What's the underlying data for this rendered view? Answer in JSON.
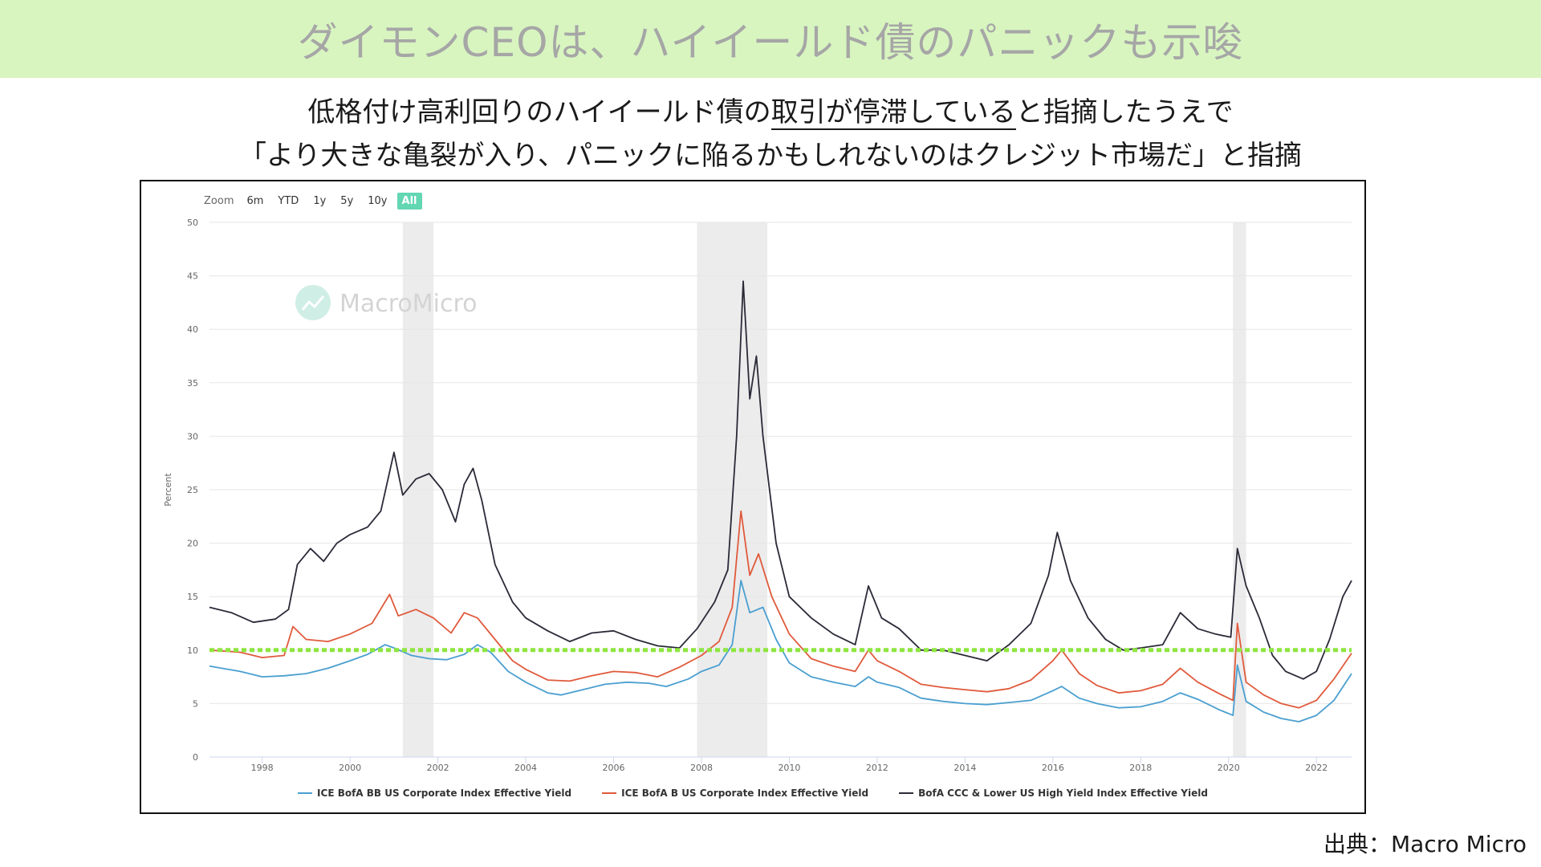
{
  "header": {
    "title": "ダイモンCEOは、ハイイールド債のパニックも示唆"
  },
  "subtitle": {
    "line1_before": "低格付け高利回りのハイイールド債の",
    "line1_underlined": "取引が停滞している",
    "line1_after": "と指摘したうえで",
    "line2": "「より大きな亀裂が入り、パニックに陥るかもしれないのはクレジット市場だ」と指摘"
  },
  "source": "出典：Macro Micro",
  "watermark": "MacroMicro",
  "zoom": {
    "label": "Zoom",
    "options": [
      "6m",
      "YTD",
      "1y",
      "5y",
      "10y",
      "All"
    ],
    "active": "All"
  },
  "colors": {
    "bb": "#4a9fd0",
    "b": "#e05a3c",
    "ccc": "#2a2a38",
    "threshold": "#8ee63f",
    "recession": "#ececec",
    "zoom_active": "#63d6b2"
  },
  "chart_data": {
    "type": "line",
    "title": "",
    "xlabel": "",
    "ylabel": "Percent",
    "xlim": [
      1996.8,
      2022.8
    ],
    "ylim": [
      0,
      50
    ],
    "yticks": [
      0,
      5,
      10,
      15,
      20,
      25,
      30,
      35,
      40,
      45,
      50
    ],
    "xticks": [
      1998,
      2000,
      2002,
      2004,
      2006,
      2008,
      2010,
      2012,
      2014,
      2016,
      2018,
      2020,
      2022
    ],
    "grid": true,
    "legend_position": "bottom",
    "recession_bands": [
      [
        2001.2,
        2001.9
      ],
      [
        2007.9,
        2009.5
      ],
      [
        2020.1,
        2020.4
      ]
    ],
    "reference_line": {
      "y": 10,
      "style": "dotted"
    },
    "series": [
      {
        "name": "ICE BofA BB US Corporate Index Effective Yield",
        "color": "#4a9fd0",
        "points": [
          [
            1996.8,
            8.5
          ],
          [
            1997.5,
            8.0
          ],
          [
            1998.0,
            7.5
          ],
          [
            1998.5,
            7.6
          ],
          [
            1999.0,
            7.8
          ],
          [
            1999.5,
            8.3
          ],
          [
            2000.0,
            9.0
          ],
          [
            2000.4,
            9.6
          ],
          [
            2000.8,
            10.5
          ],
          [
            2001.0,
            10.2
          ],
          [
            2001.4,
            9.5
          ],
          [
            2001.8,
            9.2
          ],
          [
            2002.2,
            9.1
          ],
          [
            2002.6,
            9.6
          ],
          [
            2002.9,
            10.5
          ],
          [
            2003.2,
            9.8
          ],
          [
            2003.6,
            8.0
          ],
          [
            2004.0,
            7.0
          ],
          [
            2004.5,
            6.0
          ],
          [
            2004.8,
            5.8
          ],
          [
            2005.3,
            6.3
          ],
          [
            2005.8,
            6.8
          ],
          [
            2006.3,
            7.0
          ],
          [
            2006.8,
            6.9
          ],
          [
            2007.2,
            6.6
          ],
          [
            2007.7,
            7.3
          ],
          [
            2008.0,
            8.0
          ],
          [
            2008.4,
            8.6
          ],
          [
            2008.7,
            10.5
          ],
          [
            2008.9,
            16.5
          ],
          [
            2009.1,
            13.5
          ],
          [
            2009.4,
            14.0
          ],
          [
            2009.7,
            11.0
          ],
          [
            2010.0,
            8.8
          ],
          [
            2010.5,
            7.5
          ],
          [
            2011.0,
            7.0
          ],
          [
            2011.5,
            6.6
          ],
          [
            2011.8,
            7.5
          ],
          [
            2012.0,
            7.0
          ],
          [
            2012.5,
            6.5
          ],
          [
            2013.0,
            5.5
          ],
          [
            2013.5,
            5.2
          ],
          [
            2014.0,
            5.0
          ],
          [
            2014.5,
            4.9
          ],
          [
            2015.0,
            5.1
          ],
          [
            2015.5,
            5.3
          ],
          [
            2016.0,
            6.2
          ],
          [
            2016.2,
            6.6
          ],
          [
            2016.6,
            5.5
          ],
          [
            2017.0,
            5.0
          ],
          [
            2017.5,
            4.6
          ],
          [
            2018.0,
            4.7
          ],
          [
            2018.5,
            5.2
          ],
          [
            2018.9,
            6.0
          ],
          [
            2019.3,
            5.4
          ],
          [
            2019.8,
            4.4
          ],
          [
            2020.1,
            3.9
          ],
          [
            2020.2,
            8.6
          ],
          [
            2020.4,
            5.2
          ],
          [
            2020.8,
            4.2
          ],
          [
            2021.2,
            3.6
          ],
          [
            2021.6,
            3.3
          ],
          [
            2022.0,
            3.9
          ],
          [
            2022.4,
            5.3
          ],
          [
            2022.8,
            7.8
          ]
        ]
      },
      {
        "name": "ICE BofA B US Corporate Index Effective Yield",
        "color": "#e05a3c",
        "points": [
          [
            1996.8,
            10.0
          ],
          [
            1997.5,
            9.8
          ],
          [
            1998.0,
            9.3
          ],
          [
            1998.5,
            9.5
          ],
          [
            1998.7,
            12.2
          ],
          [
            1999.0,
            11.0
          ],
          [
            1999.5,
            10.8
          ],
          [
            2000.0,
            11.5
          ],
          [
            2000.5,
            12.5
          ],
          [
            2000.9,
            15.2
          ],
          [
            2001.1,
            13.2
          ],
          [
            2001.5,
            13.8
          ],
          [
            2001.9,
            13.0
          ],
          [
            2002.3,
            11.6
          ],
          [
            2002.6,
            13.5
          ],
          [
            2002.9,
            13.0
          ],
          [
            2003.3,
            11.0
          ],
          [
            2003.7,
            9.0
          ],
          [
            2004.0,
            8.2
          ],
          [
            2004.5,
            7.2
          ],
          [
            2005.0,
            7.1
          ],
          [
            2005.5,
            7.6
          ],
          [
            2006.0,
            8.0
          ],
          [
            2006.5,
            7.9
          ],
          [
            2007.0,
            7.5
          ],
          [
            2007.5,
            8.4
          ],
          [
            2008.0,
            9.5
          ],
          [
            2008.4,
            10.8
          ],
          [
            2008.7,
            14.0
          ],
          [
            2008.9,
            23.0
          ],
          [
            2009.1,
            17.0
          ],
          [
            2009.3,
            19.0
          ],
          [
            2009.6,
            15.0
          ],
          [
            2010.0,
            11.5
          ],
          [
            2010.5,
            9.2
          ],
          [
            2011.0,
            8.5
          ],
          [
            2011.5,
            8.0
          ],
          [
            2011.8,
            10.0
          ],
          [
            2012.0,
            9.0
          ],
          [
            2012.5,
            8.0
          ],
          [
            2013.0,
            6.8
          ],
          [
            2013.5,
            6.5
          ],
          [
            2014.0,
            6.3
          ],
          [
            2014.5,
            6.1
          ],
          [
            2015.0,
            6.4
          ],
          [
            2015.5,
            7.2
          ],
          [
            2016.0,
            9.0
          ],
          [
            2016.2,
            10.0
          ],
          [
            2016.6,
            7.8
          ],
          [
            2017.0,
            6.7
          ],
          [
            2017.5,
            6.0
          ],
          [
            2018.0,
            6.2
          ],
          [
            2018.5,
            6.8
          ],
          [
            2018.9,
            8.3
          ],
          [
            2019.3,
            7.0
          ],
          [
            2019.8,
            5.9
          ],
          [
            2020.1,
            5.3
          ],
          [
            2020.2,
            12.5
          ],
          [
            2020.4,
            7.0
          ],
          [
            2020.8,
            5.8
          ],
          [
            2021.2,
            5.0
          ],
          [
            2021.6,
            4.6
          ],
          [
            2022.0,
            5.3
          ],
          [
            2022.4,
            7.3
          ],
          [
            2022.8,
            9.7
          ]
        ]
      },
      {
        "name": "BofA CCC & Lower US High Yield Index Effective Yield",
        "color": "#2a2a38",
        "points": [
          [
            1996.8,
            14.0
          ],
          [
            1997.3,
            13.5
          ],
          [
            1997.8,
            12.6
          ],
          [
            1998.3,
            12.9
          ],
          [
            1998.6,
            13.8
          ],
          [
            1998.8,
            18.0
          ],
          [
            1999.1,
            19.5
          ],
          [
            1999.4,
            18.3
          ],
          [
            1999.7,
            20.0
          ],
          [
            2000.0,
            20.8
          ],
          [
            2000.4,
            21.5
          ],
          [
            2000.7,
            23.0
          ],
          [
            2001.0,
            28.5
          ],
          [
            2001.2,
            24.5
          ],
          [
            2001.5,
            26.0
          ],
          [
            2001.8,
            26.5
          ],
          [
            2002.1,
            25.0
          ],
          [
            2002.4,
            22.0
          ],
          [
            2002.6,
            25.5
          ],
          [
            2002.8,
            27.0
          ],
          [
            2003.0,
            24.0
          ],
          [
            2003.3,
            18.0
          ],
          [
            2003.7,
            14.5
          ],
          [
            2004.0,
            13.0
          ],
          [
            2004.5,
            11.8
          ],
          [
            2005.0,
            10.8
          ],
          [
            2005.5,
            11.6
          ],
          [
            2006.0,
            11.8
          ],
          [
            2006.5,
            11.0
          ],
          [
            2007.0,
            10.4
          ],
          [
            2007.5,
            10.2
          ],
          [
            2007.9,
            12.0
          ],
          [
            2008.3,
            14.5
          ],
          [
            2008.6,
            17.5
          ],
          [
            2008.8,
            30.0
          ],
          [
            2008.95,
            44.5
          ],
          [
            2009.1,
            33.5
          ],
          [
            2009.25,
            37.5
          ],
          [
            2009.4,
            30.0
          ],
          [
            2009.7,
            20.0
          ],
          [
            2010.0,
            15.0
          ],
          [
            2010.5,
            13.0
          ],
          [
            2011.0,
            11.5
          ],
          [
            2011.5,
            10.5
          ],
          [
            2011.8,
            16.0
          ],
          [
            2012.1,
            13.0
          ],
          [
            2012.5,
            12.0
          ],
          [
            2013.0,
            10.0
          ],
          [
            2013.5,
            10.0
          ],
          [
            2014.0,
            9.5
          ],
          [
            2014.5,
            9.0
          ],
          [
            2015.0,
            10.5
          ],
          [
            2015.5,
            12.5
          ],
          [
            2015.9,
            17.0
          ],
          [
            2016.1,
            21.0
          ],
          [
            2016.4,
            16.5
          ],
          [
            2016.8,
            13.0
          ],
          [
            2017.2,
            11.0
          ],
          [
            2017.6,
            10.0
          ],
          [
            2018.0,
            10.2
          ],
          [
            2018.5,
            10.5
          ],
          [
            2018.9,
            13.5
          ],
          [
            2019.3,
            12.0
          ],
          [
            2019.7,
            11.5
          ],
          [
            2020.05,
            11.2
          ],
          [
            2020.2,
            19.5
          ],
          [
            2020.4,
            16.0
          ],
          [
            2020.7,
            13.0
          ],
          [
            2021.0,
            9.5
          ],
          [
            2021.3,
            8.0
          ],
          [
            2021.7,
            7.3
          ],
          [
            2022.0,
            8.0
          ],
          [
            2022.3,
            11.0
          ],
          [
            2022.6,
            15.0
          ],
          [
            2022.8,
            16.5
          ]
        ]
      }
    ]
  }
}
